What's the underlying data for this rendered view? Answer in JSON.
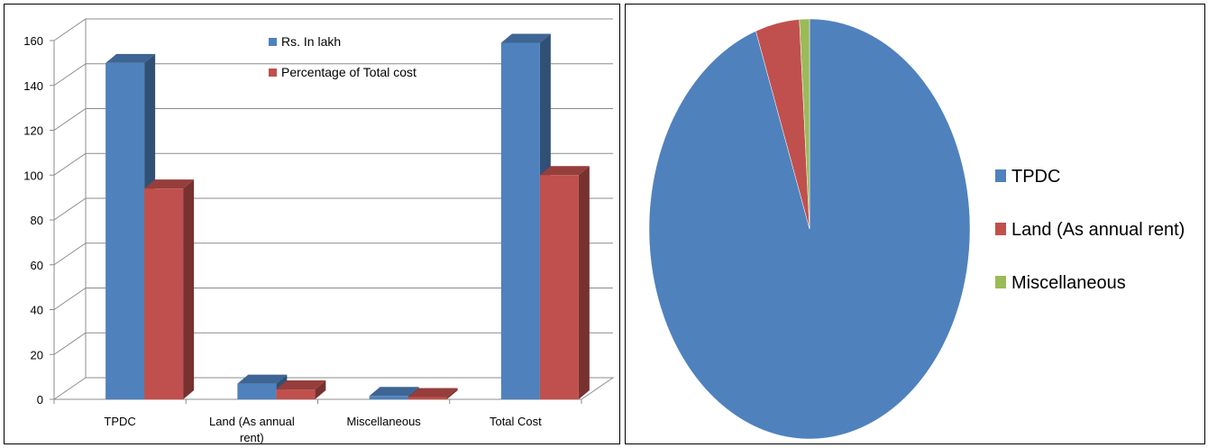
{
  "chart_data": [
    {
      "type": "bar",
      "categories": [
        "TPDC",
        "Land (As annual rent)",
        "Miscellaneous",
        "Total Cost"
      ],
      "category_lines": [
        [
          "TPDC"
        ],
        [
          "Land (As annual",
          "rent)"
        ],
        [
          "Miscellaneous"
        ],
        [
          "Total Cost"
        ]
      ],
      "series": [
        {
          "name": "Rs. In lakh",
          "values": [
            150,
            7,
            1.5,
            159
          ],
          "color": "#4F81BD"
        },
        {
          "name": "Percentage of Total cost",
          "values": [
            94,
            4.4,
            1,
            100
          ],
          "color": "#C0504D"
        }
      ],
      "ylim": [
        0,
        160
      ],
      "yticks": [
        0,
        20,
        40,
        60,
        80,
        100,
        120,
        140,
        160
      ],
      "grid": true,
      "legend": "top-center",
      "style": "3d-column"
    },
    {
      "type": "pie",
      "labels": [
        "TPDC",
        "Land (As annual rent)",
        "Miscellaneous"
      ],
      "values": [
        94,
        4.4,
        1
      ],
      "colors": [
        "#4F81BD",
        "#C0504D",
        "#9BBB59"
      ],
      "legend": "right"
    }
  ]
}
